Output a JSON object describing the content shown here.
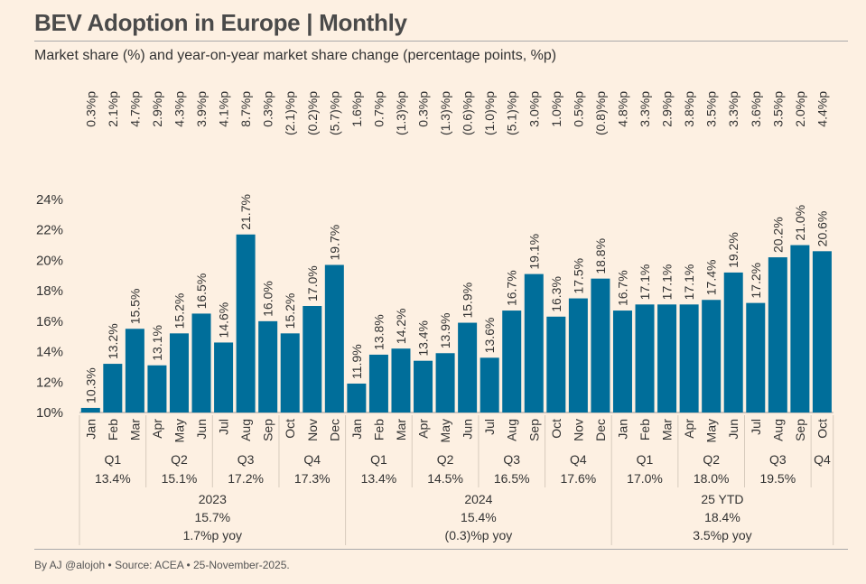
{
  "title": "BEV Adoption in Europe | Monthly",
  "subtitle": "Market share (%) and year-on-year market share change (percentage points, %p)",
  "footer": "By AJ @alojoh • Source: ACEA • 25-November-2025.",
  "colors": {
    "bar": "#006e9a",
    "background": "#fdf0e2",
    "grid": "#d9cfc3"
  },
  "chart_data": {
    "type": "bar",
    "ylim": [
      10,
      24
    ],
    "yticks": [
      10,
      12,
      14,
      16,
      18,
      20,
      22,
      24
    ],
    "ytick_labels": [
      "10%",
      "12%",
      "14%",
      "16%",
      "18%",
      "20%",
      "22%",
      "24%"
    ],
    "months": [
      {
        "m": "Jan",
        "v": 10.3,
        "vl": "10.3%",
        "yoy": "0.3%p"
      },
      {
        "m": "Feb",
        "v": 13.2,
        "vl": "13.2%",
        "yoy": "2.1%p"
      },
      {
        "m": "Mar",
        "v": 15.5,
        "vl": "15.5%",
        "yoy": "4.7%p"
      },
      {
        "m": "Apr",
        "v": 13.1,
        "vl": "13.1%",
        "yoy": "2.9%p"
      },
      {
        "m": "May",
        "v": 15.2,
        "vl": "15.2%",
        "yoy": "4.3%p"
      },
      {
        "m": "Jun",
        "v": 16.5,
        "vl": "16.5%",
        "yoy": "3.9%p"
      },
      {
        "m": "Jul",
        "v": 14.6,
        "vl": "14.6%",
        "yoy": "4.1%p"
      },
      {
        "m": "Aug",
        "v": 21.7,
        "vl": "21.7%",
        "yoy": "8.7%p"
      },
      {
        "m": "Sep",
        "v": 16.0,
        "vl": "16.0%",
        "yoy": "0.3%p"
      },
      {
        "m": "Oct",
        "v": 15.2,
        "vl": "15.2%",
        "yoy": "(2.1)%p"
      },
      {
        "m": "Nov",
        "v": 17.0,
        "vl": "17.0%",
        "yoy": "(0.2)%p"
      },
      {
        "m": "Dec",
        "v": 19.7,
        "vl": "19.7%",
        "yoy": "(5.7)%p"
      },
      {
        "m": "Jan",
        "v": 11.9,
        "vl": "11.9%",
        "yoy": "1.6%p"
      },
      {
        "m": "Feb",
        "v": 13.8,
        "vl": "13.8%",
        "yoy": "0.7%p"
      },
      {
        "m": "Mar",
        "v": 14.2,
        "vl": "14.2%",
        "yoy": "(1.3)%p"
      },
      {
        "m": "Apr",
        "v": 13.4,
        "vl": "13.4%",
        "yoy": "0.3%p"
      },
      {
        "m": "May",
        "v": 13.9,
        "vl": "13.9%",
        "yoy": "(1.3)%p"
      },
      {
        "m": "Jun",
        "v": 15.9,
        "vl": "15.9%",
        "yoy": "(0.6)%p"
      },
      {
        "m": "Jul",
        "v": 13.6,
        "vl": "13.6%",
        "yoy": "(1.0)%p"
      },
      {
        "m": "Aug",
        "v": 16.7,
        "vl": "16.7%",
        "yoy": "(5.1)%p"
      },
      {
        "m": "Sep",
        "v": 19.1,
        "vl": "19.1%",
        "yoy": "3.0%p"
      },
      {
        "m": "Oct",
        "v": 16.3,
        "vl": "16.3%",
        "yoy": "1.0%p"
      },
      {
        "m": "Nov",
        "v": 17.5,
        "vl": "17.5%",
        "yoy": "0.5%p"
      },
      {
        "m": "Dec",
        "v": 18.8,
        "vl": "18.8%",
        "yoy": "(0.8)%p"
      },
      {
        "m": "Jan",
        "v": 16.7,
        "vl": "16.7%",
        "yoy": "4.8%p"
      },
      {
        "m": "Feb",
        "v": 17.1,
        "vl": "17.1%",
        "yoy": "3.3%p"
      },
      {
        "m": "Mar",
        "v": 17.1,
        "vl": "17.1%",
        "yoy": "2.9%p"
      },
      {
        "m": "Apr",
        "v": 17.1,
        "vl": "17.1%",
        "yoy": "3.8%p"
      },
      {
        "m": "May",
        "v": 17.4,
        "vl": "17.4%",
        "yoy": "3.5%p"
      },
      {
        "m": "Jun",
        "v": 19.2,
        "vl": "19.2%",
        "yoy": "3.3%p"
      },
      {
        "m": "Jul",
        "v": 17.2,
        "vl": "17.2%",
        "yoy": "3.6%p"
      },
      {
        "m": "Aug",
        "v": 20.2,
        "vl": "20.2%",
        "yoy": "3.5%p"
      },
      {
        "m": "Sep",
        "v": 21.0,
        "vl": "21.0%",
        "yoy": "2.0%p"
      },
      {
        "m": "Oct",
        "v": 20.6,
        "vl": "20.6%",
        "yoy": "4.4%p"
      }
    ],
    "quarters": [
      {
        "q": "Q1",
        "share": "13.4%",
        "start": 0,
        "n": 3
      },
      {
        "q": "Q2",
        "share": "15.1%",
        "start": 3,
        "n": 3
      },
      {
        "q": "Q3",
        "share": "17.2%",
        "start": 6,
        "n": 3
      },
      {
        "q": "Q4",
        "share": "17.3%",
        "start": 9,
        "n": 3
      },
      {
        "q": "Q1",
        "share": "13.4%",
        "start": 12,
        "n": 3
      },
      {
        "q": "Q2",
        "share": "14.5%",
        "start": 15,
        "n": 3
      },
      {
        "q": "Q3",
        "share": "16.5%",
        "start": 18,
        "n": 3
      },
      {
        "q": "Q4",
        "share": "17.6%",
        "start": 21,
        "n": 3
      },
      {
        "q": "Q1",
        "share": "17.0%",
        "start": 24,
        "n": 3
      },
      {
        "q": "Q2",
        "share": "18.0%",
        "start": 27,
        "n": 3
      },
      {
        "q": "Q3",
        "share": "19.5%",
        "start": 30,
        "n": 3
      },
      {
        "q": "Q4",
        "share": "",
        "start": 33,
        "n": 1
      }
    ],
    "years": [
      {
        "label": "2023",
        "share": "15.7%",
        "yoy": "1.7%p yoy",
        "start": 0,
        "n": 12
      },
      {
        "label": "2024",
        "share": "15.4%",
        "yoy": "(0.3)%p yoy",
        "start": 12,
        "n": 12
      },
      {
        "label": "25 YTD",
        "share": "18.4%",
        "yoy": "3.5%p yoy",
        "start": 24,
        "n": 10
      }
    ]
  }
}
